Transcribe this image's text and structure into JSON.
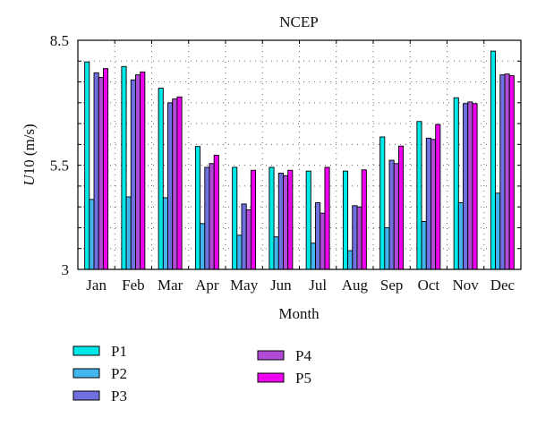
{
  "chart_data": {
    "type": "bar",
    "title": "NCEP",
    "xlabel": "Month",
    "ylabel_var": "U",
    "ylabel_rest": "10 (m/s)",
    "ylim": [
      3,
      8.5
    ],
    "yticks": [
      "3",
      "5.5",
      "8.5"
    ],
    "grid": true,
    "legend_position": "bottom-left",
    "categories": [
      "Jan",
      "Feb",
      "Mar",
      "Apr",
      "May",
      "Jun",
      "Jul",
      "Aug",
      "Sep",
      "Oct",
      "Nov",
      "Dec"
    ],
    "series": [
      {
        "name": "P1",
        "color": "#00e8e8",
        "values": [
          7.98,
          7.87,
          7.35,
          5.95,
          5.45,
          5.45,
          5.36,
          5.36,
          6.18,
          6.55,
          7.12,
          8.24
        ]
      },
      {
        "name": "P2",
        "color": "#44b4ee",
        "values": [
          4.68,
          4.74,
          4.72,
          4.1,
          3.82,
          3.78,
          3.63,
          3.45,
          4.0,
          4.15,
          4.6,
          4.83
        ]
      },
      {
        "name": "P3",
        "color": "#6f6fe0",
        "values": [
          7.72,
          7.55,
          7.0,
          5.45,
          4.57,
          5.31,
          4.6,
          4.53,
          5.62,
          6.15,
          6.98,
          7.67
        ]
      },
      {
        "name": "P4",
        "color": "#b24ad8",
        "values": [
          7.61,
          7.67,
          7.09,
          5.54,
          4.43,
          5.25,
          4.35,
          4.5,
          5.54,
          6.12,
          7.02,
          7.69
        ]
      },
      {
        "name": "P5",
        "color": "#ee00ee",
        "values": [
          7.82,
          7.74,
          7.14,
          5.74,
          5.38,
          5.38,
          5.45,
          5.39,
          5.96,
          6.48,
          6.98,
          7.65
        ]
      }
    ]
  }
}
